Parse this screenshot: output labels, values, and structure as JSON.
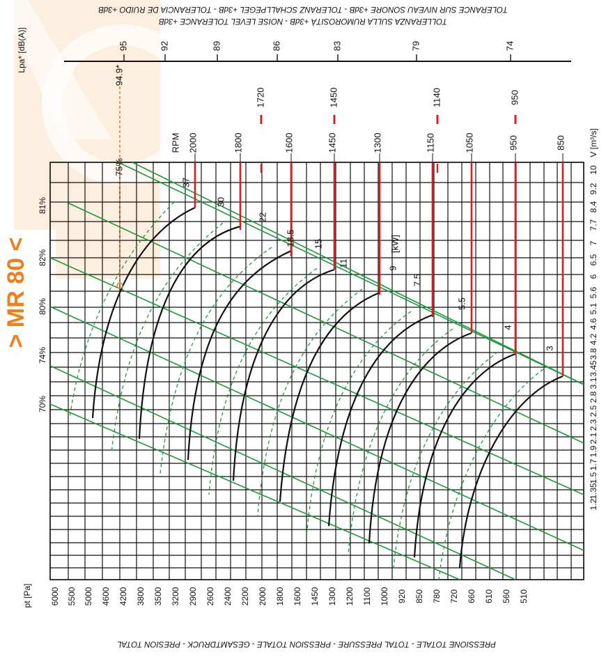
{
  "chart_data": {
    "type": "line",
    "orientation": "rotated-90-clockwise",
    "brand_mark": "> MR 80 <",
    "top_notes": [
      "TOLERANCE SUR NIVEAU SONORE +3dB - TOLERANZ SCHALLPEGEL +3dB - TOLERANCIA DE RUIDO +3dB",
      "TOLLERANZA SULLA RUMOROSITÀ +3dB - NOISE LEVEL TOLERANCE +3dB"
    ],
    "bottom_note": "PRESSIONE TOTALE - TOTAL PRESSURE - PRESSION TOTALE - GESAMTDRUCK - PRESION TOTAL",
    "lpa_label": "Lpa* [dB(A)]",
    "lpa_ticks": [
      "95",
      "92",
      "89",
      "86",
      "83",
      "79",
      "74"
    ],
    "pressure_label": "pt [Pa]",
    "pressure_ticks": [
      "6000",
      "5500",
      "5000",
      "4600",
      "4200",
      "3800",
      "3500",
      "3200",
      "2900",
      "2600",
      "2400",
      "2200",
      "2000",
      "1800",
      "1600",
      "1450",
      "1300",
      "1200",
      "1100",
      "1000",
      "920",
      "850",
      "780",
      "720",
      "660",
      "610",
      "560",
      "510"
    ],
    "flow_label": "V [m³/s]",
    "flow_ticks": [
      "10",
      "9.2",
      "8.4",
      "7.7",
      "7",
      "6.5",
      "6",
      "5.6",
      "5.1",
      "4.6",
      "4.2",
      "3.8",
      "3.45",
      "3.1",
      "2.8",
      "2.5",
      "2.3",
      "2.1",
      "1.9",
      "1.7",
      "1.5",
      "1.35",
      "1.2"
    ],
    "rpm_label": "RPM",
    "rpm_values": [
      "2000",
      "1800",
      "1600",
      "1450",
      "1300",
      "1150",
      "1050",
      "950",
      "850"
    ],
    "lpa_rpm_marks": [
      "1720",
      "1450",
      "1140",
      "950"
    ],
    "power_label": "[kW]",
    "power_values": [
      "37",
      "30",
      "22",
      "18.5",
      "15",
      "11",
      "9",
      "7.5",
      "5.5",
      "4",
      "3"
    ],
    "efficiency_values": [
      "81%",
      "82%",
      "80%",
      "74%",
      "70%"
    ],
    "operating_point": {
      "efficiency": "75%",
      "lpa": "94.9*"
    },
    "colors": {
      "grid": "#111111",
      "iso_efficiency": "#1a9a3a",
      "rpm": "#d42020",
      "curve": "#111111",
      "marker": "#e07a20",
      "watermark": "#fde8d2",
      "brand": "#f07e1a"
    }
  }
}
